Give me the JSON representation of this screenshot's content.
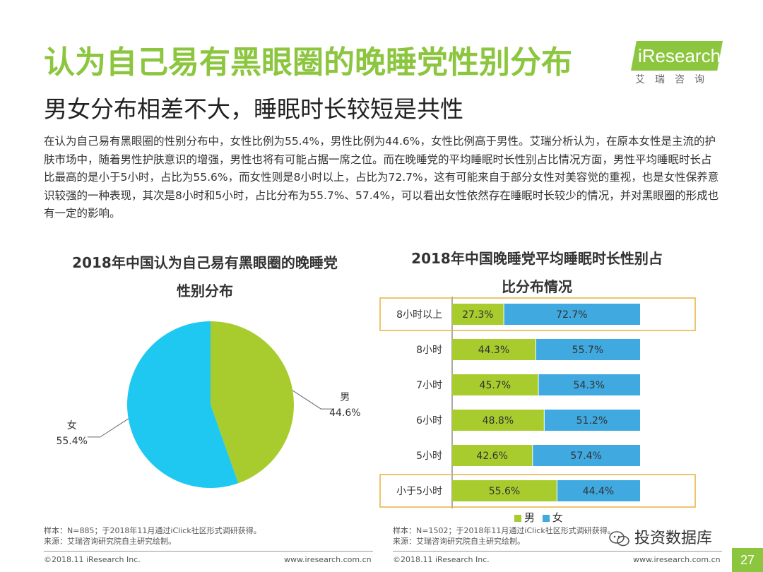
{
  "header": {
    "title": "认为自己易有黑眼圈的晚睡党性别分布",
    "subtitle": "男女分布相差不大，睡眠时长较短是共性",
    "logo_text": "iResearch",
    "logo_sub": "艾瑞咨询"
  },
  "body_text": "在认为自己易有黑眼圈的性别分布中，女性比例为55.4%，男性比例为44.6%，女性比例高于男性。艾瑞分析认为，在原本女性是主流的护肤市场中，随着男性护肤意识的增强，男性也将有可能占据一席之位。而在晚睡党的平均睡眠时长性别占比情况方面，男性平均睡眠时长占比最高的是小于5小时，占比为55.6%，而女性则是8小时以上，占比为72.7%，这有可能来自于部分女性对美容觉的重视，也是女性保养意识较强的一种表现，其次是8小时和5小时，占比分布为55.7%、57.4%，可以看出女性依然存在睡眠时长较少的情况，并对黑眼圈的形成也有一定的影响。",
  "chart_data": [
    {
      "type": "pie",
      "title_line1": "2018年中国认为自己易有黑眼圈的晚睡党",
      "title_line2": "性别分布",
      "slices": [
        {
          "label": "男",
          "value": 44.6,
          "value_label": "44.6%",
          "color": "#a8cc2e"
        },
        {
          "label": "女",
          "value": 55.4,
          "value_label": "55.4%",
          "color": "#1ec8f0"
        }
      ]
    },
    {
      "type": "bar",
      "orientation": "horizontal",
      "stacked": "percent",
      "title_line1": "2018年中国晚睡党平均睡眠时长性别占",
      "title_line2": "比分布情况",
      "categories": [
        "8小时以上",
        "8小时",
        "7小时",
        "6小时",
        "5小时",
        "小于5小时"
      ],
      "highlighted": [
        "8小时以上",
        "小于5小时"
      ],
      "series": [
        {
          "name": "男",
          "color": "#a8cc2e",
          "values": [
            27.3,
            44.3,
            45.7,
            48.8,
            42.6,
            55.6
          ]
        },
        {
          "name": "女",
          "color": "#3fa9e0",
          "values": [
            72.7,
            55.7,
            54.3,
            51.2,
            57.4,
            44.4
          ]
        }
      ],
      "legend": "bottom"
    }
  ],
  "notes": {
    "left_line1": "样本：N=885；于2018年11月通过iClick社区形式调研获得。",
    "left_line2": "来源：艾瑞咨询研究院自主研究绘制。",
    "right_line1": "样本：N=1502；于2018年11月通过iClick社区形式调研获得。",
    "right_line2": "来源：艾瑞咨询研究院自主研究绘制。"
  },
  "footer": {
    "left_copyright": "©2018.11 iResearch Inc.",
    "left_url": "www.iresearch.com.cn",
    "right_copyright": "©2018.11 iResearch Inc.",
    "right_url": "www.iresearch.com.cn",
    "watermark": "投资数据库",
    "page_number": "27"
  },
  "colors": {
    "accent": "#8cc63e",
    "male": "#a8cc2e",
    "female_pie": "#1ec8f0",
    "female_bar": "#3fa9e0",
    "highlight_border": "#e8b84a"
  }
}
